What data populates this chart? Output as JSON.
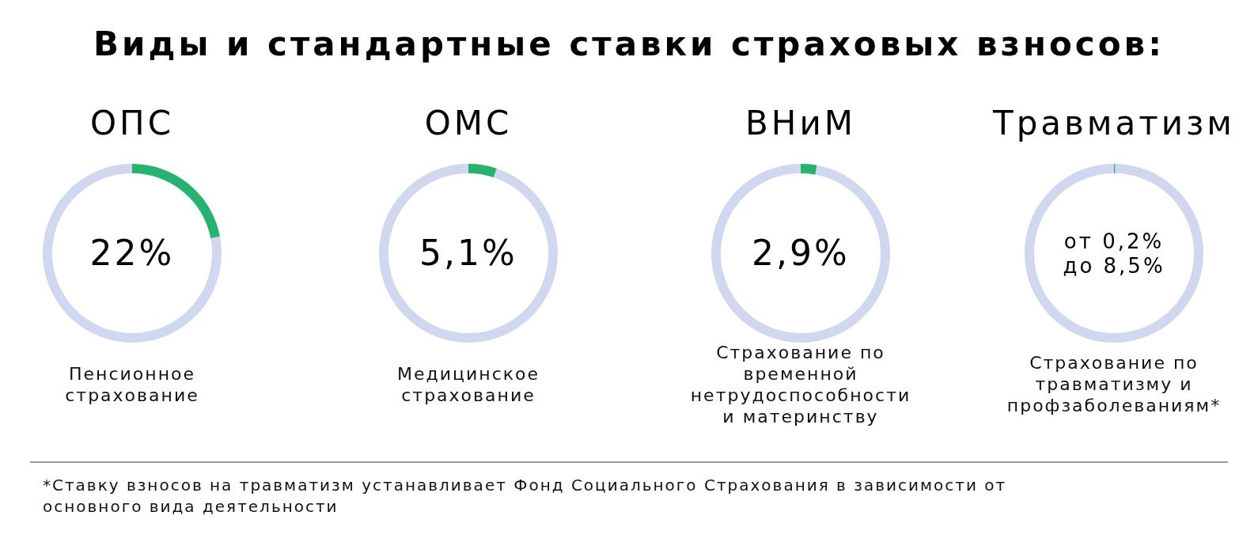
{
  "chart_data": [
    {
      "type": "other",
      "title": "Виды и стандартные ставки страховых взносов:",
      "annotations": [
        "*Ставку взносов на травматизм устанавливает Фонд Социального Страхования в зависимости от основного вида деятельности"
      ]
    },
    {
      "type": "donut",
      "title": "ОПС",
      "categories": [
        null,
        null
      ],
      "values": [
        22,
        78
      ],
      "colors": [
        "#27b36f",
        "#d0d8ef"
      ],
      "annotations": [
        "22%",
        "Пенсионное страхование"
      ]
    },
    {
      "type": "donut",
      "title": "ОМС",
      "categories": [
        null,
        null
      ],
      "values": [
        5.1,
        94.9
      ],
      "colors": [
        "#27b36f",
        "#d0d8ef"
      ],
      "annotations": [
        "5,1%",
        "Медицинское страхование"
      ]
    },
    {
      "type": "donut",
      "title": "ВНиМ",
      "categories": [
        null,
        null
      ],
      "values": [
        2.9,
        97.1
      ],
      "colors": [
        "#27b36f",
        "#d0d8ef"
      ],
      "annotations": [
        "2,9%",
        "Страхование по временной нетрудоспособности и материнству"
      ]
    },
    {
      "type": "donut",
      "title": "Травматизм",
      "categories": [
        null,
        null
      ],
      "values": [
        0.2,
        99.8
      ],
      "colors": [
        "#27b36f",
        "#d0d8ef"
      ],
      "annotations": [
        "от 0,2% до 8,5%",
        "Страхование по травматизму и профзаболеваниям*"
      ]
    }
  ]
}
